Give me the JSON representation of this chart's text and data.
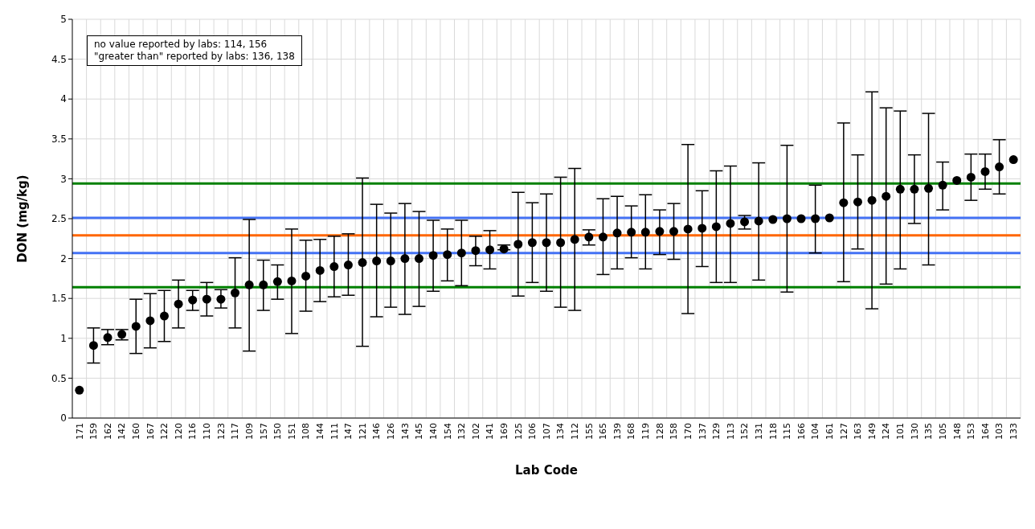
{
  "chart_data": {
    "type": "scatter",
    "xlabel": "Lab Code",
    "ylabel": "DON (mg/kg)",
    "categories": [
      "171",
      "159",
      "162",
      "142",
      "160",
      "167",
      "122",
      "120",
      "116",
      "110",
      "123",
      "117",
      "109",
      "157",
      "150",
      "151",
      "108",
      "144",
      "111",
      "147",
      "121",
      "146",
      "126",
      "143",
      "145",
      "140",
      "154",
      "132",
      "102",
      "141",
      "169",
      "125",
      "106",
      "107",
      "134",
      "112",
      "155",
      "165",
      "139",
      "168",
      "119",
      "128",
      "158",
      "170",
      "137",
      "129",
      "113",
      "152",
      "131",
      "118",
      "115",
      "166",
      "104",
      "161",
      "127",
      "163",
      "149",
      "124",
      "101",
      "130",
      "135",
      "105",
      "148",
      "153",
      "164",
      "103",
      "133"
    ],
    "series": [
      {
        "color": "#000000",
        "values": [
          0.35,
          0.91,
          1.01,
          1.05,
          1.15,
          1.22,
          1.28,
          1.43,
          1.48,
          1.49,
          1.49,
          1.57,
          1.67,
          1.67,
          1.71,
          1.72,
          1.78,
          1.85,
          1.9,
          1.92,
          1.95,
          1.97,
          1.97,
          2.0,
          2.0,
          2.04,
          2.05,
          2.07,
          2.1,
          2.11,
          2.12,
          2.18,
          2.2,
          2.2,
          2.2,
          2.24,
          2.27,
          2.27,
          2.32,
          2.33,
          2.33,
          2.34,
          2.34,
          2.37,
          2.38,
          2.4,
          2.44,
          2.46,
          2.47,
          2.49,
          2.5,
          2.5,
          2.5,
          2.51,
          2.7,
          2.71,
          2.73,
          2.78,
          2.87,
          2.87,
          2.88,
          2.92,
          2.98,
          3.02,
          3.09,
          3.15,
          3.24
        ],
        "errors": [
          null,
          [
            0.69,
            1.13
          ],
          [
            0.92,
            1.11
          ],
          [
            0.98,
            1.11
          ],
          [
            0.81,
            1.49
          ],
          [
            0.88,
            1.56
          ],
          [
            0.96,
            1.6
          ],
          [
            1.13,
            1.73
          ],
          [
            1.35,
            1.6
          ],
          [
            1.28,
            1.7
          ],
          [
            1.38,
            1.61
          ],
          [
            1.13,
            2.01
          ],
          [
            0.84,
            2.49
          ],
          [
            1.35,
            1.98
          ],
          [
            1.49,
            1.92
          ],
          [
            1.06,
            2.37
          ],
          [
            1.34,
            2.23
          ],
          [
            1.46,
            2.24
          ],
          [
            1.52,
            2.28
          ],
          [
            1.54,
            2.31
          ],
          [
            0.9,
            3.01
          ],
          [
            1.27,
            2.68
          ],
          [
            1.39,
            2.57
          ],
          [
            1.3,
            2.69
          ],
          [
            1.4,
            2.59
          ],
          [
            1.59,
            2.48
          ],
          [
            1.72,
            2.37
          ],
          [
            1.66,
            2.48
          ],
          [
            1.91,
            2.28
          ],
          [
            1.87,
            2.35
          ],
          [
            2.11,
            2.17
          ],
          [
            1.53,
            2.83
          ],
          [
            1.7,
            2.7
          ],
          [
            1.59,
            2.81
          ],
          [
            1.39,
            3.02
          ],
          [
            1.35,
            3.13
          ],
          [
            2.17,
            2.36
          ],
          [
            1.8,
            2.75
          ],
          [
            1.87,
            2.78
          ],
          [
            2.01,
            2.66
          ],
          [
            1.87,
            2.8
          ],
          [
            2.05,
            2.61
          ],
          [
            1.99,
            2.69
          ],
          [
            1.31,
            3.43
          ],
          [
            1.9,
            2.85
          ],
          [
            1.7,
            3.1
          ],
          [
            1.7,
            3.16
          ],
          [
            2.37,
            2.54
          ],
          [
            1.73,
            3.2
          ],
          null,
          [
            1.58,
            3.42
          ],
          null,
          [
            2.07,
            2.92
          ],
          null,
          [
            1.71,
            3.7
          ],
          [
            2.12,
            3.3
          ],
          [
            1.37,
            4.09
          ],
          [
            1.68,
            3.89
          ],
          [
            1.87,
            3.85
          ],
          [
            2.44,
            3.3
          ],
          [
            1.92,
            3.82
          ],
          [
            2.61,
            3.21
          ],
          null,
          [
            2.73,
            3.31
          ],
          [
            2.87,
            3.31
          ],
          [
            2.81,
            3.49
          ],
          null
        ]
      }
    ],
    "ylim": [
      0,
      5
    ],
    "yticks": [
      0,
      0.5,
      1,
      1.5,
      2,
      2.5,
      3,
      3.5,
      4,
      4.5,
      5
    ],
    "ref_lines": [
      {
        "axis": "y",
        "value": 2.94,
        "color": "#008000"
      },
      {
        "axis": "y",
        "value": 2.51,
        "color": "#4472f4"
      },
      {
        "axis": "y",
        "value": 2.29,
        "color": "#ff6600"
      },
      {
        "axis": "y",
        "value": 2.07,
        "color": "#4472f4"
      },
      {
        "axis": "y",
        "value": 1.64,
        "color": "#008000"
      }
    ],
    "annotations": [
      "no value reported by labs: 114, 156",
      "\"greater than\" reported by labs: 136, 138"
    ],
    "grid": true,
    "marker": "circle"
  }
}
